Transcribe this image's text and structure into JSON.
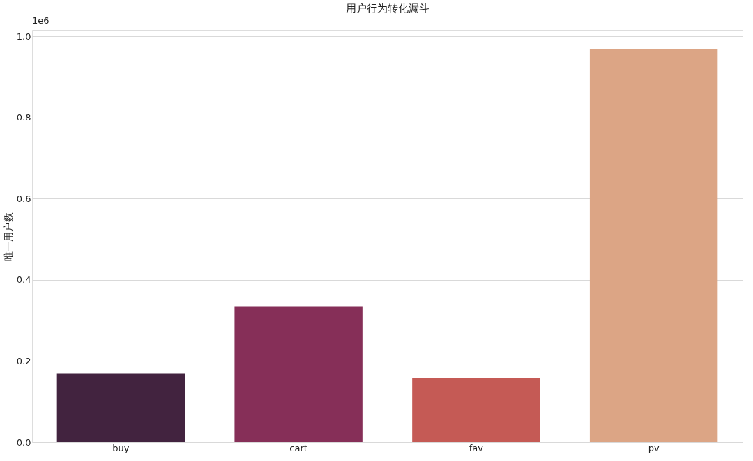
{
  "chart_data": {
    "type": "bar",
    "title": "用户行为转化漏斗",
    "ylabel": "唯一用户数",
    "categories": [
      "buy",
      "cart",
      "fav",
      "pv"
    ],
    "values": [
      0.169,
      0.334,
      0.158,
      0.968
    ],
    "colors": [
      "#42233f",
      "#862f58",
      "#c55a55",
      "#dca585"
    ],
    "ylim": [
      0,
      1.016
    ],
    "yticks": [
      {
        "value": 0,
        "label": "0.0"
      },
      0.2,
      0.4,
      0.6,
      0.8,
      {
        "value": 1,
        "label": "1.0"
      }
    ],
    "annotations": [
      "1e6"
    ],
    "grid": "y"
  }
}
